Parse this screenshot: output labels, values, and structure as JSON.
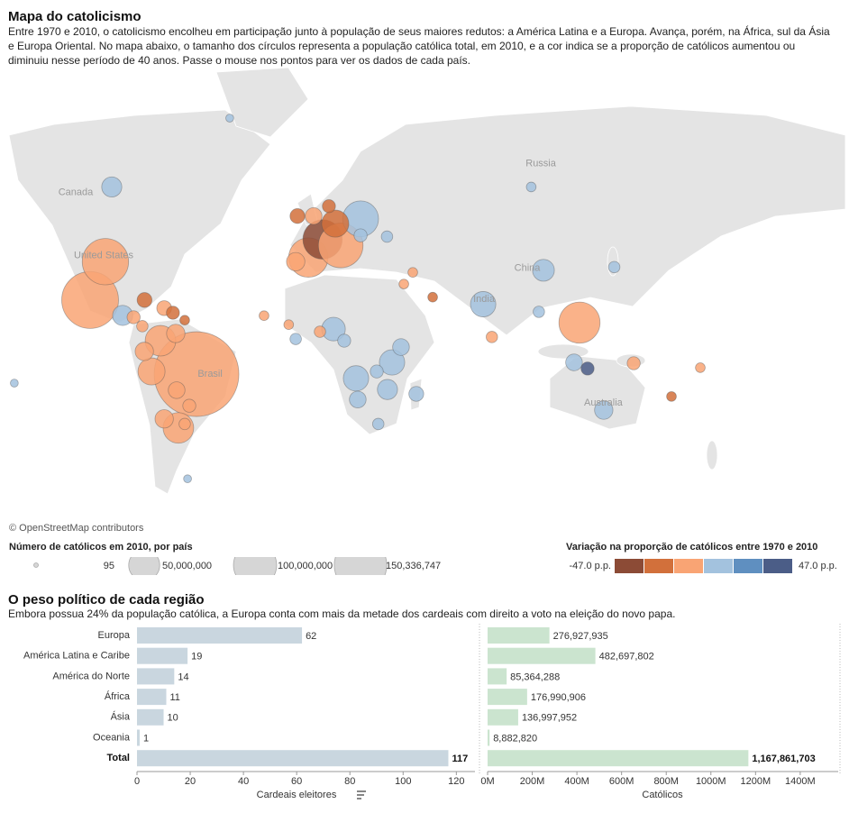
{
  "chart_data": [
    {
      "type": "bubble-map",
      "title": "Mapa do catolicismo",
      "subtitle": "Entre 1970 e 2010, o catolicismo encolheu em participação junto à população de seus maiores redutos: a América Latina e a Europa. Avança, porém, na África, sul da Ásia e Europa Oriental. No mapa abaixo, o tamanho dos círculos representa a população católica total, em 2010, e a cor indica se a proporção de católicos aumentou ou diminuiu nesse período de 40 anos. Passe o mouse nos pontos para ver os dados de cada país.",
      "attribution": "© OpenStreetMap contributors",
      "place_labels": [
        {
          "label": "Canada",
          "lon": -108.5,
          "lat": 58
        },
        {
          "label": "United States",
          "lon": -95.7,
          "lat": 39.2
        },
        {
          "label": "Russia",
          "lon": 104.4,
          "lat": 64.3
        },
        {
          "label": "China",
          "lon": 98.2,
          "lat": 34.6
        },
        {
          "label": "India",
          "lon": 78.4,
          "lat": 22
        },
        {
          "label": "Brasil",
          "lon": -47,
          "lat": -11.5
        },
        {
          "label": "Australia",
          "lon": 133,
          "lat": -24
        }
      ],
      "points": {
        "lon": [
          -53.2,
          -101.9,
          -94.9,
          -92,
          -69.7,
          -73.8,
          -61.5,
          -68,
          -62.7,
          -77.1,
          -62.3,
          -87,
          -77,
          -82,
          -68,
          -64,
          -58.6,
          -56.5,
          -58.6,
          -78,
          -2,
          4.5,
          12.8,
          21.9,
          10.3,
          0.4,
          -7,
          -7.8,
          21.9,
          34,
          7.4,
          9.5,
          19.8,
          36.3,
          34.2,
          20.6,
          40.4,
          47.4,
          14.4,
          3.3,
          29.3,
          30,
          122.1,
          78,
          105.6,
          119.6,
          125.8,
          103.5,
          138,
          82,
          41.7,
          146.9,
          133.2,
          164.2,
          177.4,
          -136.6,
          -57.3,
          -38,
          45.8,
          54.9,
          100,
          -11,
          -22.3,
          -7.8
        ],
        "lat": [
          -11.5,
          21.8,
          37,
          59.3,
          3.7,
          -10.3,
          -34,
          -30.5,
          7,
          -1.2,
          -18.6,
          15.1,
          21.8,
          14.3,
          18.3,
          16.3,
          13,
          -25.2,
          -32.5,
          10.3,
          38.5,
          44.7,
          42.7,
          51,
          49.6,
          51.8,
          51.8,
          37,
          46,
          45.6,
          54.5,
          9,
          -13.4,
          -6.2,
          -18.3,
          -22.6,
          0.8,
          -20.2,
          3.7,
          7.8,
          -10.3,
          -32.5,
          11.9,
          20,
          33.8,
          -6.2,
          -9,
          16.7,
          35,
          5.4,
          28.4,
          -6.6,
          -27,
          -21.3,
          -8.6,
          -15.5,
          -51,
          72,
          33,
          23,
          59.3,
          11,
          15,
          4.5
        ],
        "values": [
          150336747,
          65400000,
          42500000,
          6800000,
          17400000,
          13300000,
          17400000,
          5500000,
          5500000,
          5500000,
          4400000,
          6800000,
          3300000,
          2400000,
          3300000,
          2400000,
          1100000,
          2400000,
          1700000,
          1700000,
          30000000,
          30000000,
          39200000,
          24600000,
          13300000,
          4400000,
          3300000,
          5500000,
          2400000,
          1700000,
          2400000,
          9800000,
          11500000,
          11500000,
          6800000,
          4400000,
          4400000,
          3300000,
          2400000,
          1700000,
          2400000,
          1700000,
          32900000,
          11500000,
          8200000,
          4400000,
          2400000,
          1700000,
          1700000,
          1700000,
          1100000,
          2400000,
          5500000,
          1100000,
          1100000,
          612000,
          612000,
          612000,
          1100000,
          1100000,
          1100000,
          1100000,
          1100000,
          1700000
        ],
        "change": [
          -10,
          -8,
          -5,
          8,
          -8,
          -8,
          -10,
          -12,
          -14,
          -6,
          -9,
          6,
          -20,
          -12,
          -10,
          -25,
          -18,
          -8,
          -10,
          -15,
          -12,
          -35,
          -10,
          5,
          -20,
          -5,
          -18,
          -14,
          8,
          6,
          -20,
          12,
          10,
          8,
          10,
          6,
          12,
          5,
          4,
          -4,
          8,
          5,
          -6,
          8,
          6,
          10,
          40,
          3,
          4,
          -5,
          -12,
          -12,
          6,
          -25,
          -10,
          5,
          4,
          5,
          -15,
          -20,
          5,
          -8,
          -3,
          6
        ]
      },
      "size_legend": {
        "title": "Número de católicos em 2010, por país",
        "values": [
          95,
          {
            "value": 50000000,
            "label": "50,000,000"
          },
          {
            "value": 100000000,
            "label": "100,000,000"
          },
          {
            "value": 150336747,
            "label": "150,336,747"
          }
        ]
      },
      "color_legend": {
        "title": "Variação na proporção de católicos entre 1970 e 2010",
        "range": [
          {
            "value": -47,
            "label": "-47.0 p.p."
          },
          {
            "value": 47,
            "label": "47.0 p.p."
          }
        ],
        "colors": [
          "#8c4b36",
          "#d2703b",
          "#f9a474",
          "#a3c2de",
          "#5f8fc0",
          "#4b5d87"
        ]
      }
    },
    {
      "type": "hbar",
      "title": "O peso político de cada região",
      "subtitle": "Embora possua 24% da população católica, a Europa conta com mais da metade dos cardeais com direito a voto na eleição do novo papa.",
      "categories": [
        "Europa",
        "América Latina e Caribe",
        "América do Norte",
        "África",
        "Ásia",
        "Oceania",
        "Total"
      ],
      "values": [
        62,
        19,
        14,
        11,
        10,
        1,
        117
      ],
      "xlabel": "Cardeais eleitores",
      "xlim": [
        0,
        127
      ],
      "xticks": [
        0,
        20,
        40,
        60,
        80,
        100,
        120
      ],
      "color": "#c9d6df"
    },
    {
      "type": "hbar",
      "values": [
        276927935,
        482697802,
        85364288,
        176990906,
        136997952,
        8882820,
        1167861703
      ],
      "value_labels": [
        "276,927,935",
        "482,697,802",
        "85,364,288",
        "176,990,906",
        "136,997,952",
        "8,882,820",
        "1,167,861,703"
      ],
      "xlabel": "Católicos",
      "xlim": [
        0,
        1570000000
      ],
      "xticks": [
        {
          "value": 0,
          "label": "0M"
        },
        {
          "value": 200000000,
          "label": "200M"
        },
        {
          "value": 400000000,
          "label": "400M"
        },
        {
          "value": 600000000,
          "label": "600M"
        },
        {
          "value": 800000000,
          "label": "800M"
        },
        {
          "value": 1000000000,
          "label": "1000M"
        },
        {
          "value": 1200000000,
          "label": "1200M"
        },
        {
          "value": 1400000000,
          "label": "1400M"
        }
      ],
      "color": "#cbe4cf"
    }
  ]
}
